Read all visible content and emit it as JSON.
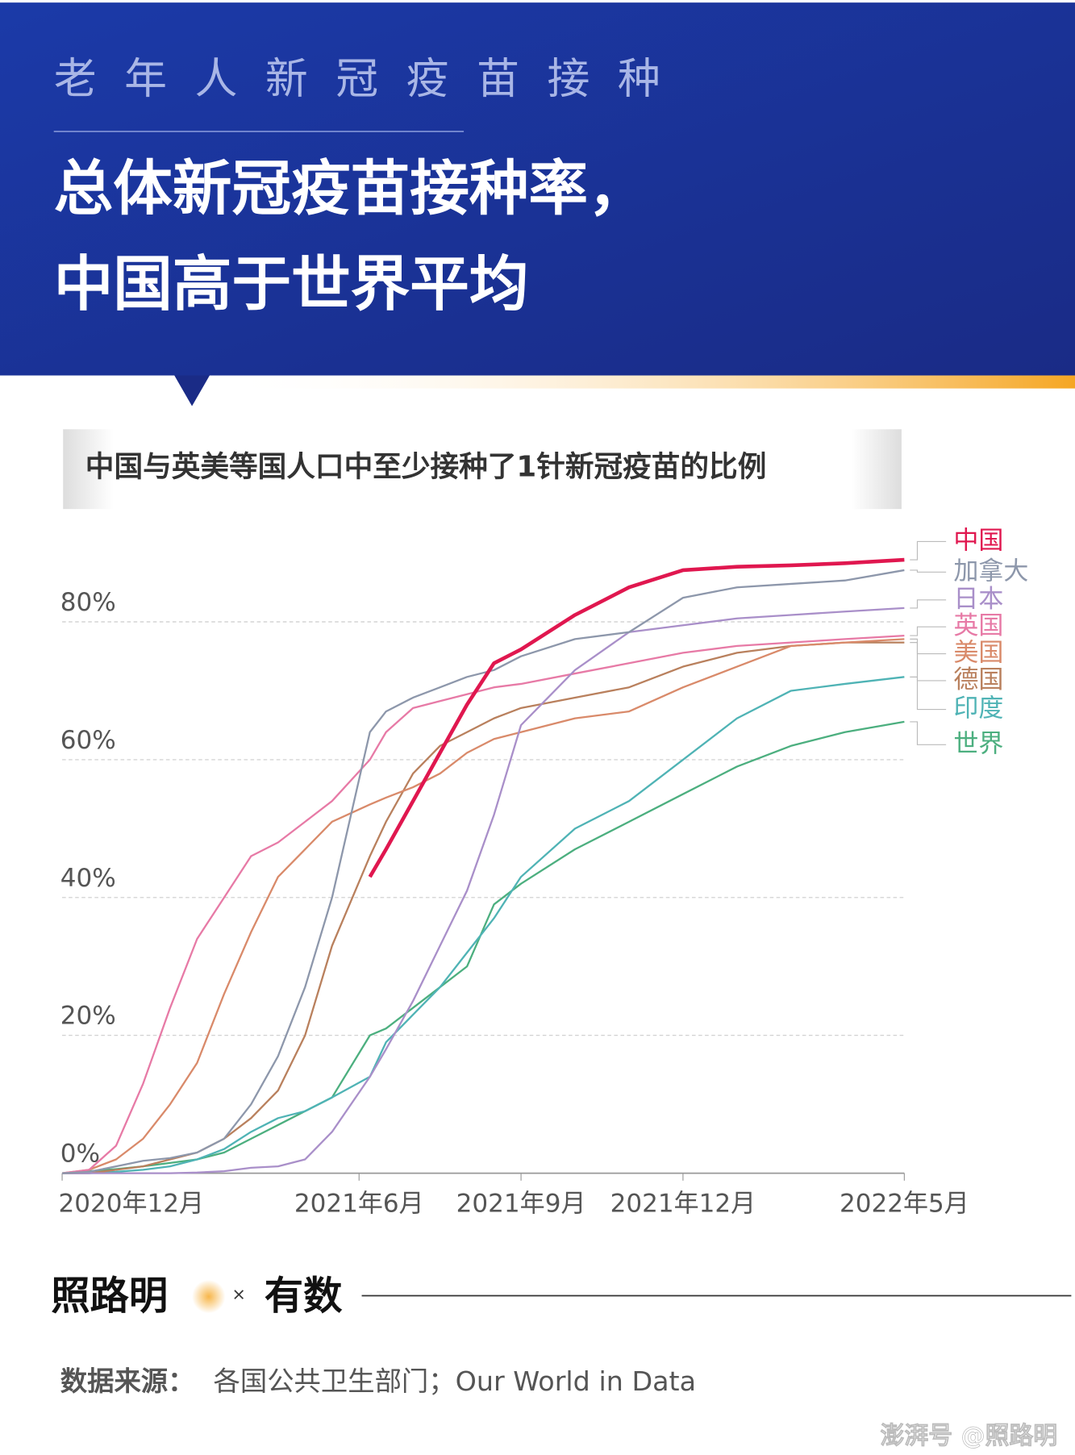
{
  "header": {
    "kicker": "老年人新冠疫苗接种",
    "title_lines": [
      "总体新冠疫苗接种率，",
      "中国高于世界平均"
    ]
  },
  "chart_data": {
    "type": "line",
    "title": "中国与英美等国人口中至少接种了1针新冠疫苗的比例",
    "x": [
      0.5,
      1,
      1.5,
      2,
      2.5,
      3,
      3.5,
      4,
      4.5,
      5,
      5.5,
      6.2,
      6.5,
      7,
      7.5,
      8,
      8.5,
      9,
      10,
      11,
      12,
      13,
      14,
      15,
      16.1
    ],
    "xlim": [
      0.5,
      16.1
    ],
    "xticks": [
      {
        "value": 0.5,
        "label": "2020年12月"
      },
      {
        "value": 6,
        "label": "2021年6月"
      },
      {
        "value": 9,
        "label": "2021年9月"
      },
      {
        "value": 12,
        "label": "2021年12月"
      },
      {
        "value": 16.1,
        "label": "2022年5月"
      }
    ],
    "ylim": [
      0,
      90
    ],
    "yticks": [
      {
        "value": 0,
        "label": "0%"
      },
      {
        "value": 20,
        "label": "20%"
      },
      {
        "value": 40,
        "label": "40%"
      },
      {
        "value": 60,
        "label": "60%"
      },
      {
        "value": 80,
        "label": "80%"
      }
    ],
    "grid": true,
    "series": [
      {
        "name": "中国",
        "color": "#e0174f",
        "values": [
          null,
          null,
          null,
          null,
          null,
          null,
          null,
          null,
          null,
          null,
          null,
          43,
          47,
          54,
          61,
          68,
          74,
          76,
          81,
          85,
          87.5,
          88,
          88.2,
          88.5,
          89
        ]
      },
      {
        "name": "加拿大",
        "color": "#8d97ab",
        "values": [
          0,
          0.2,
          1,
          1.8,
          2.2,
          3,
          5,
          10,
          17,
          27,
          40,
          64,
          67,
          69,
          70.5,
          72,
          73,
          75,
          77.5,
          78.5,
          83.5,
          85,
          85.5,
          86,
          87.5
        ]
      },
      {
        "name": "日本",
        "color": "#a98fc9",
        "values": [
          0,
          0,
          0,
          0,
          0,
          0.1,
          0.3,
          0.8,
          1,
          2,
          6,
          14,
          18,
          25,
          33,
          41,
          52,
          65,
          73,
          78.5,
          79.5,
          80.5,
          81,
          81.5,
          82
        ]
      },
      {
        "name": "英国",
        "color": "#e77aa6",
        "values": [
          0,
          0.5,
          4,
          13,
          24,
          34,
          40,
          46,
          48,
          51,
          54,
          60,
          64,
          67.5,
          68.5,
          69.5,
          70.5,
          71,
          72.5,
          74,
          75.5,
          76.5,
          77,
          77.5,
          78
        ]
      },
      {
        "name": "美国",
        "color": "#d98a6a",
        "values": [
          0,
          0.5,
          2,
          5,
          10,
          16,
          26,
          35,
          43,
          47,
          51,
          53.5,
          54.5,
          56,
          58,
          61,
          63,
          64,
          66,
          67,
          70.5,
          73.5,
          76.5,
          77,
          77.5
        ]
      },
      {
        "name": "德国",
        "color": "#b9805d",
        "values": [
          0,
          0,
          0.5,
          1,
          2,
          3,
          5,
          8,
          12,
          20,
          33,
          46,
          51,
          58,
          62,
          64,
          66,
          67.5,
          69,
          70.5,
          73.5,
          75.5,
          76.5,
          77,
          77
        ]
      },
      {
        "name": "印度",
        "color": "#4fb3b5",
        "values": [
          0,
          0,
          0.2,
          0.5,
          1,
          2,
          3.5,
          6,
          8,
          9,
          11,
          14,
          19,
          23,
          27,
          32,
          37,
          43,
          50,
          54,
          60,
          66,
          70,
          71,
          72
        ]
      },
      {
        "name": "世界",
        "color": "#4caf7f",
        "values": [
          0,
          0.3,
          0.6,
          1,
          1.5,
          2,
          3,
          5,
          7,
          9,
          11,
          20,
          21,
          24,
          27,
          30,
          39,
          42,
          47,
          51,
          55,
          59,
          62,
          64,
          65.5
        ]
      }
    ]
  },
  "footer": {
    "brand": "照路明",
    "separator": "×",
    "partner": "有数",
    "source_label": "数据来源：",
    "source_text": "各国公共卫生部门；Our World in Data",
    "watermark": "澎湃号 @照路明"
  }
}
